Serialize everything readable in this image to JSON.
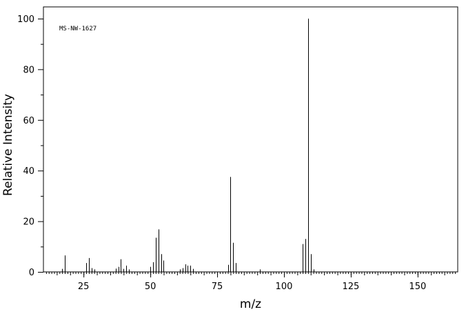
{
  "chart_data": {
    "type": "bar",
    "annotation": "MS-NW-1627",
    "xlabel": "m/z",
    "ylabel": "Relative Intensity",
    "xlim": [
      10,
      165
    ],
    "ylim": [
      0,
      100
    ],
    "x_major_ticks": [
      25,
      50,
      75,
      100,
      125,
      150
    ],
    "y_major_ticks": [
      0,
      20,
      40,
      60,
      80,
      100
    ],
    "grid": false,
    "peaks": [
      {
        "mz": 17,
        "intensity": 1.2
      },
      {
        "mz": 18,
        "intensity": 6.5
      },
      {
        "mz": 26,
        "intensity": 3.5
      },
      {
        "mz": 27,
        "intensity": 5.5
      },
      {
        "mz": 28,
        "intensity": 1.5
      },
      {
        "mz": 29,
        "intensity": 1.0
      },
      {
        "mz": 37,
        "intensity": 1.3
      },
      {
        "mz": 38,
        "intensity": 2.0
      },
      {
        "mz": 39,
        "intensity": 5.0
      },
      {
        "mz": 40,
        "intensity": 1.2
      },
      {
        "mz": 41,
        "intensity": 2.5
      },
      {
        "mz": 42,
        "intensity": 1.0
      },
      {
        "mz": 50,
        "intensity": 2.0
      },
      {
        "mz": 51,
        "intensity": 3.8
      },
      {
        "mz": 52,
        "intensity": 13.5
      },
      {
        "mz": 53,
        "intensity": 16.8
      },
      {
        "mz": 54,
        "intensity": 7.0
      },
      {
        "mz": 55,
        "intensity": 4.5
      },
      {
        "mz": 61,
        "intensity": 1.0
      },
      {
        "mz": 62,
        "intensity": 1.5
      },
      {
        "mz": 63,
        "intensity": 3.0
      },
      {
        "mz": 64,
        "intensity": 2.5
      },
      {
        "mz": 65,
        "intensity": 2.5
      },
      {
        "mz": 66,
        "intensity": 1.2
      },
      {
        "mz": 79,
        "intensity": 2.8
      },
      {
        "mz": 80,
        "intensity": 37.5
      },
      {
        "mz": 81,
        "intensity": 11.5
      },
      {
        "mz": 82,
        "intensity": 3.5
      },
      {
        "mz": 91,
        "intensity": 1.0
      },
      {
        "mz": 107,
        "intensity": 11.0
      },
      {
        "mz": 108,
        "intensity": 13.0
      },
      {
        "mz": 109,
        "intensity": 100
      },
      {
        "mz": 110,
        "intensity": 7.0
      },
      {
        "mz": 111,
        "intensity": 1.0
      }
    ]
  }
}
